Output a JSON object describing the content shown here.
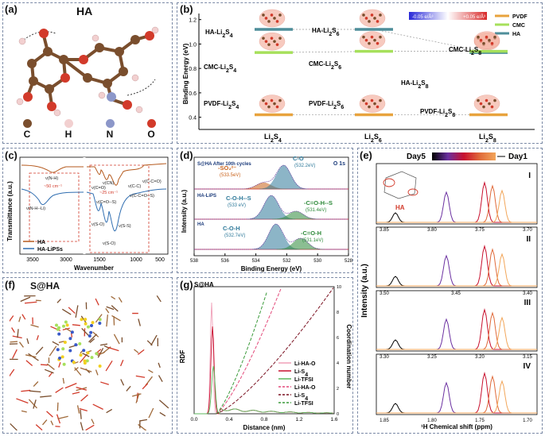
{
  "panels": {
    "a": {
      "label": "(a)",
      "title": "HA",
      "legend": [
        {
          "symbol": "C",
          "color": "#7a4e2d"
        },
        {
          "symbol": "H",
          "color": "#f2d0d0"
        },
        {
          "symbol": "N",
          "color": "#8c97c9"
        },
        {
          "symbol": "O",
          "color": "#d23a2a"
        }
      ]
    },
    "b": {
      "label": "(b)",
      "ylabel": "Binding Energy (eV)",
      "yticks": [
        "0.4",
        "0.6",
        "0.8",
        "1.0",
        "1.2"
      ],
      "colorbar": {
        "low": "-0.05 e/Å³",
        "high": "+0.05 e/Å³"
      },
      "legend": [
        {
          "name": "PVDF",
          "color": "#e8a33d"
        },
        {
          "name": "CMC",
          "color": "#a6e05b"
        },
        {
          "name": "HA",
          "color": "#4e8e9a"
        }
      ],
      "structures": [
        {
          "label": "HA-Li2S4"
        },
        {
          "label": "CMC-Li2S4"
        },
        {
          "label": "PVDF-Li2S4"
        },
        {
          "label": "HA-Li2S6"
        },
        {
          "label": "CMC-Li2S6"
        },
        {
          "label": "PVDF-Li2S6"
        },
        {
          "label": "HA-Li2S8"
        },
        {
          "label": "CMC-Li2S8"
        },
        {
          "label": "PVDF-Li2S8"
        }
      ],
      "xcats": [
        "Li2S4",
        "Li2S6",
        "Li2S8"
      ]
    },
    "c": {
      "label": "(c)",
      "ylabel": "Transmittance (a.u.)",
      "xlabel": "Wavenumber",
      "xticks": [
        "3500",
        "3000",
        "1500",
        "1000",
        "500"
      ],
      "legend": [
        {
          "name": "HA",
          "color": "#b55a1e"
        },
        {
          "name": "HA-LiPSs",
          "color": "#2f6db0"
        }
      ],
      "annotations": [
        "ν(N-H)",
        "~50 cm⁻¹",
        "ν(N-H--Li)",
        "ν(C=O)",
        "ν(CN)",
        "~25 cm⁻¹",
        "ν(C-C)",
        "ν(C-C=O)",
        "ν(C=O--S)",
        "ν(C-C=O--S)",
        "ν(S-O)",
        "ν(S-S)",
        "ν(S-O)"
      ]
    },
    "d": {
      "label": "(d)",
      "title": "S@HA After 10th cycles",
      "corner": "O 1s",
      "ylabel": "Intensity (a.u.)",
      "xlabel": "Binding Energy (eV)",
      "xticks": [
        "538",
        "536",
        "534",
        "532",
        "530",
        "528"
      ],
      "rows": [
        {
          "sample": "S@HA After 10th cycles",
          "peaks": [
            {
              "name": "-SO₂²⁻",
              "be": "(533.5eV)",
              "color": "#c9621a"
            },
            {
              "name": "C-O",
              "be": "(532.2eV)",
              "color": "#2f7a9a"
            }
          ]
        },
        {
          "sample": "HA-LiPS",
          "peaks": [
            {
              "name": "C-O-H--S",
              "be": "(533 eV)",
              "color": "#2f7a9a"
            },
            {
              "name": "-C=O-H--S",
              "be": "(531.4eV)",
              "color": "#2e8a3a"
            }
          ]
        },
        {
          "sample": "HA",
          "peaks": [
            {
              "name": "C-O-H",
              "be": "(532.7eV)",
              "color": "#2f7a9a"
            },
            {
              "name": "-C=O-H",
              "be": "(531.1eV)",
              "color": "#2e8a3a"
            }
          ]
        }
      ]
    },
    "e": {
      "label": "(e)",
      "legend_left": "Day5",
      "legend_right": "Day1",
      "molecule_label": "HA",
      "ylabel": "Intensity (a.u.)",
      "xlabel": "¹H Chemical shift (ppm)",
      "subplots": [
        {
          "roman": "I",
          "ticks": [
            "3.85",
            "3.80",
            "3.75",
            "3.70"
          ]
        },
        {
          "roman": "II",
          "ticks": [
            "3.50",
            "3.45",
            "3.40"
          ]
        },
        {
          "roman": "III",
          "ticks": [
            "3.30",
            "3.25",
            "3.20",
            "3.15"
          ]
        },
        {
          "roman": "IV",
          "ticks": [
            "1.85",
            "1.80",
            "1.75",
            "1.70"
          ]
        }
      ],
      "curve_colors": [
        "#000000",
        "#6a2fa0",
        "#c8102e",
        "#e06a3a",
        "#f2a65a"
      ]
    },
    "f": {
      "label": "(f)",
      "title": "S@HA"
    },
    "g": {
      "label": "(g)",
      "title": "S@HA",
      "ylabel": "RDF",
      "y2label": "Coordination number",
      "xlabel": "Distance (nm)",
      "xticks": [
        "0.0",
        "0.4",
        "0.8",
        "1.2",
        "1.6"
      ],
      "y2ticks": [
        "0",
        "2",
        "4",
        "6",
        "8",
        "10"
      ],
      "legend": [
        {
          "name": "Li-HA-O",
          "color": "#f0a0b8",
          "dash": false
        },
        {
          "name": "Li-S4",
          "color": "#c8102e",
          "dash": false
        },
        {
          "name": "Li-TFSI",
          "color": "#5cb85c",
          "dash": false
        },
        {
          "name": "Li-HA-O",
          "color": "#e34a7a",
          "dash": true
        },
        {
          "name": "Li-S4",
          "color": "#7a1020",
          "dash": true
        },
        {
          "name": "Li-TFSI",
          "color": "#3a9a3a",
          "dash": true
        }
      ]
    }
  }
}
